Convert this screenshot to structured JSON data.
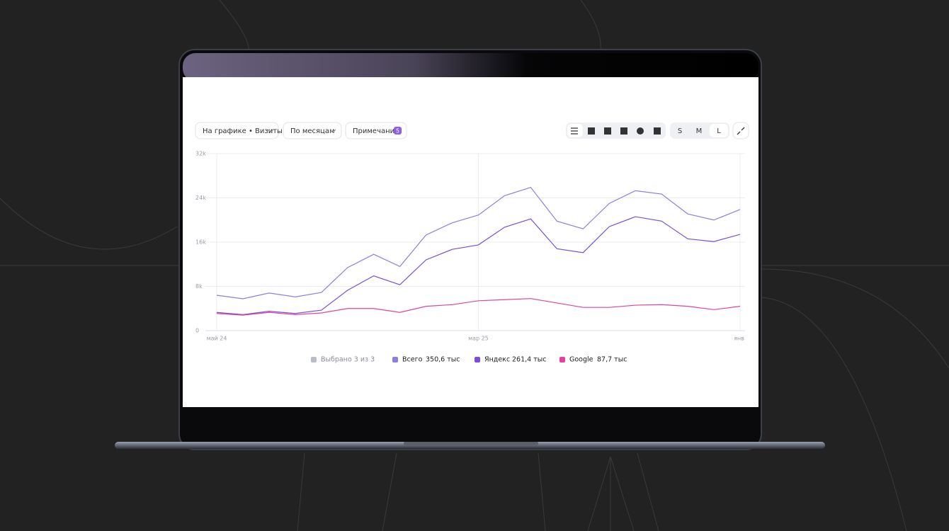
{
  "toolbar": {
    "metric": "На графике • Визиты",
    "period": "По месяцам",
    "notes": "Примечания",
    "notes_count": 5,
    "sizes": [
      "S",
      "M",
      "L"
    ]
  },
  "chart_data": {
    "type": "line",
    "categories": [
      "май 24",
      null,
      null,
      null,
      null,
      null,
      null,
      null,
      null,
      null,
      "мар 25",
      null,
      null,
      null,
      null,
      null,
      null,
      null,
      null,
      null,
      "янв"
    ],
    "series": [
      {
        "name": "Всего",
        "color": "#8b7fe3",
        "total": "350,6 тыс",
        "values": [
          6400,
          5760,
          6800,
          6100,
          6900,
          11400,
          13800,
          11600,
          17300,
          19500,
          20900,
          24400,
          25900,
          19800,
          18400,
          23000,
          25300,
          24700,
          21100,
          20000,
          21900
        ]
      },
      {
        "name": "Яндекс",
        "color": "#7a4fd8",
        "total": "261,4 тыс",
        "values": [
          3300,
          2900,
          3500,
          3100,
          3700,
          7300,
          9900,
          8300,
          12800,
          14700,
          15500,
          18700,
          20200,
          14800,
          14100,
          18800,
          20600,
          19800,
          16600,
          16100,
          17400
        ]
      },
      {
        "name": "Google",
        "color": "#e2439c",
        "total": "87,7 тыс",
        "values": [
          3100,
          2800,
          3300,
          2900,
          3200,
          4000,
          4000,
          3300,
          4400,
          4700,
          5400,
          5600,
          5800,
          5000,
          4200,
          4200,
          4600,
          4700,
          4400,
          3800,
          4400
        ]
      }
    ],
    "legend_summary": "Выбрано 3 из 3",
    "ylim": [
      0,
      32000
    ],
    "yticks": [
      0,
      {
        "value": 8000,
        "label": "8k"
      },
      {
        "value": 16000,
        "label": "16k"
      },
      {
        "value": 24000,
        "label": "24k"
      },
      {
        "value": 32000,
        "label": "32k"
      }
    ],
    "grid": true
  }
}
